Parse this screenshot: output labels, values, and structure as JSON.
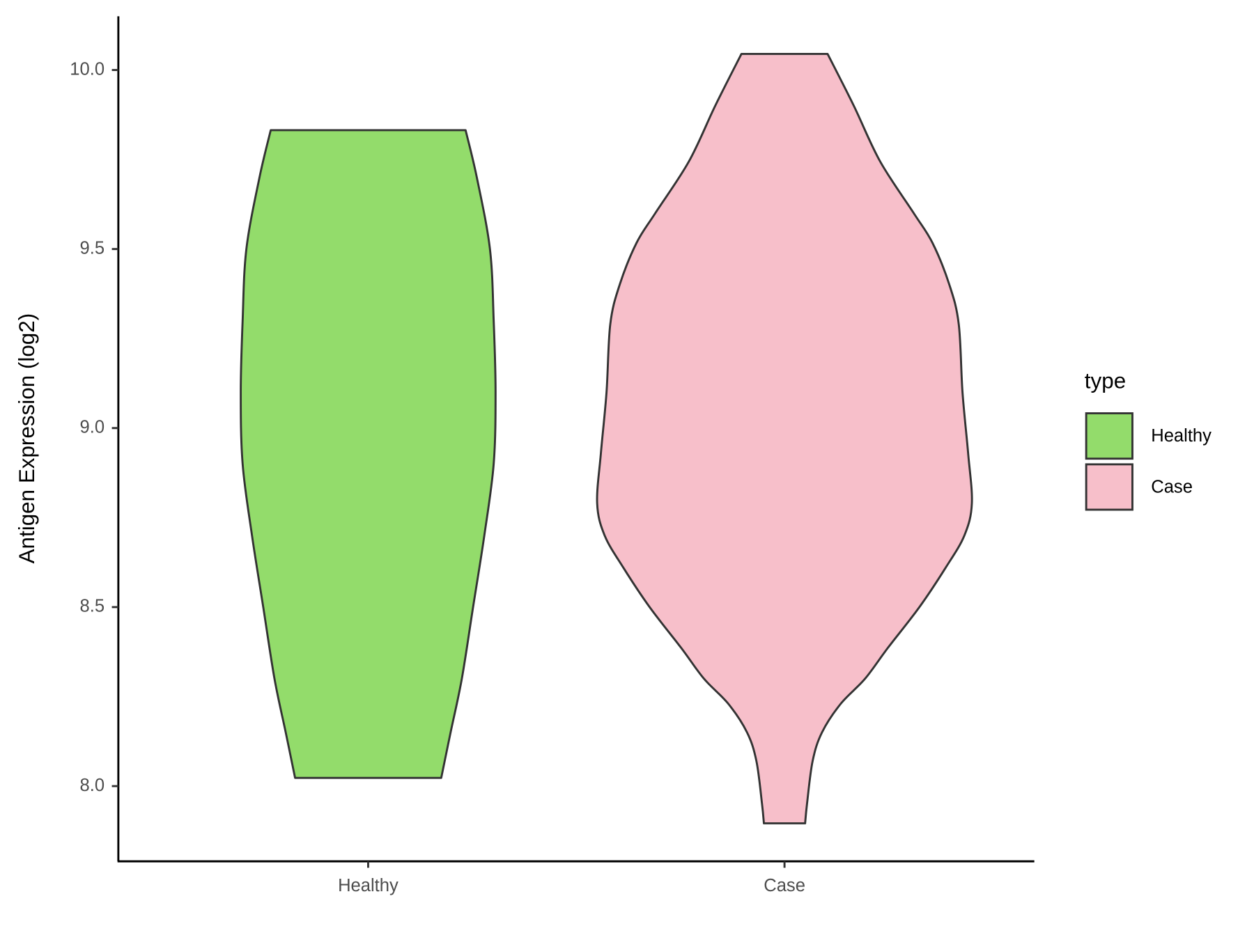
{
  "chart_data": {
    "type": "violin",
    "y_label": "Antigen Expression (log2)",
    "categories": [
      "Healthy",
      "Case"
    ],
    "series": [
      {
        "name": "Healthy",
        "color": "#93dc6b",
        "y": [
          9.832,
          9.7,
          9.5,
          9.3,
          9.1,
          8.9,
          8.7,
          8.5,
          8.3,
          8.15,
          8.023
        ],
        "density": [
          0.52,
          0.58,
          0.65,
          0.67,
          0.68,
          0.67,
          0.62,
          0.56,
          0.5,
          0.44,
          0.39
        ]
      },
      {
        "name": "Case",
        "color": "#f7bfca",
        "y": [
          10.045,
          9.9,
          9.745,
          9.6,
          9.517,
          9.4,
          9.29,
          9.1,
          8.93,
          8.79,
          8.7,
          8.61,
          8.5,
          8.385,
          8.3,
          8.23,
          8.15,
          8.07,
          7.95,
          7.896
        ],
        "density": [
          0.23,
          0.37,
          0.51,
          0.69,
          0.79,
          0.88,
          0.93,
          0.95,
          0.98,
          1.0,
          0.96,
          0.86,
          0.72,
          0.55,
          0.43,
          0.3,
          0.2,
          0.15,
          0.12,
          0.11
        ]
      }
    ],
    "ylim": [
      7.79,
      10.15
    ],
    "yticks": [
      {
        "value": 8,
        "label": "8.0"
      },
      {
        "value": 8.5,
        "label": "8.5"
      },
      {
        "value": 9,
        "label": "9.0"
      },
      {
        "value": 9.5,
        "label": "9.5"
      },
      {
        "value": 10,
        "label": "10.0"
      }
    ],
    "legend_title": "type",
    "legend_position": "right"
  }
}
